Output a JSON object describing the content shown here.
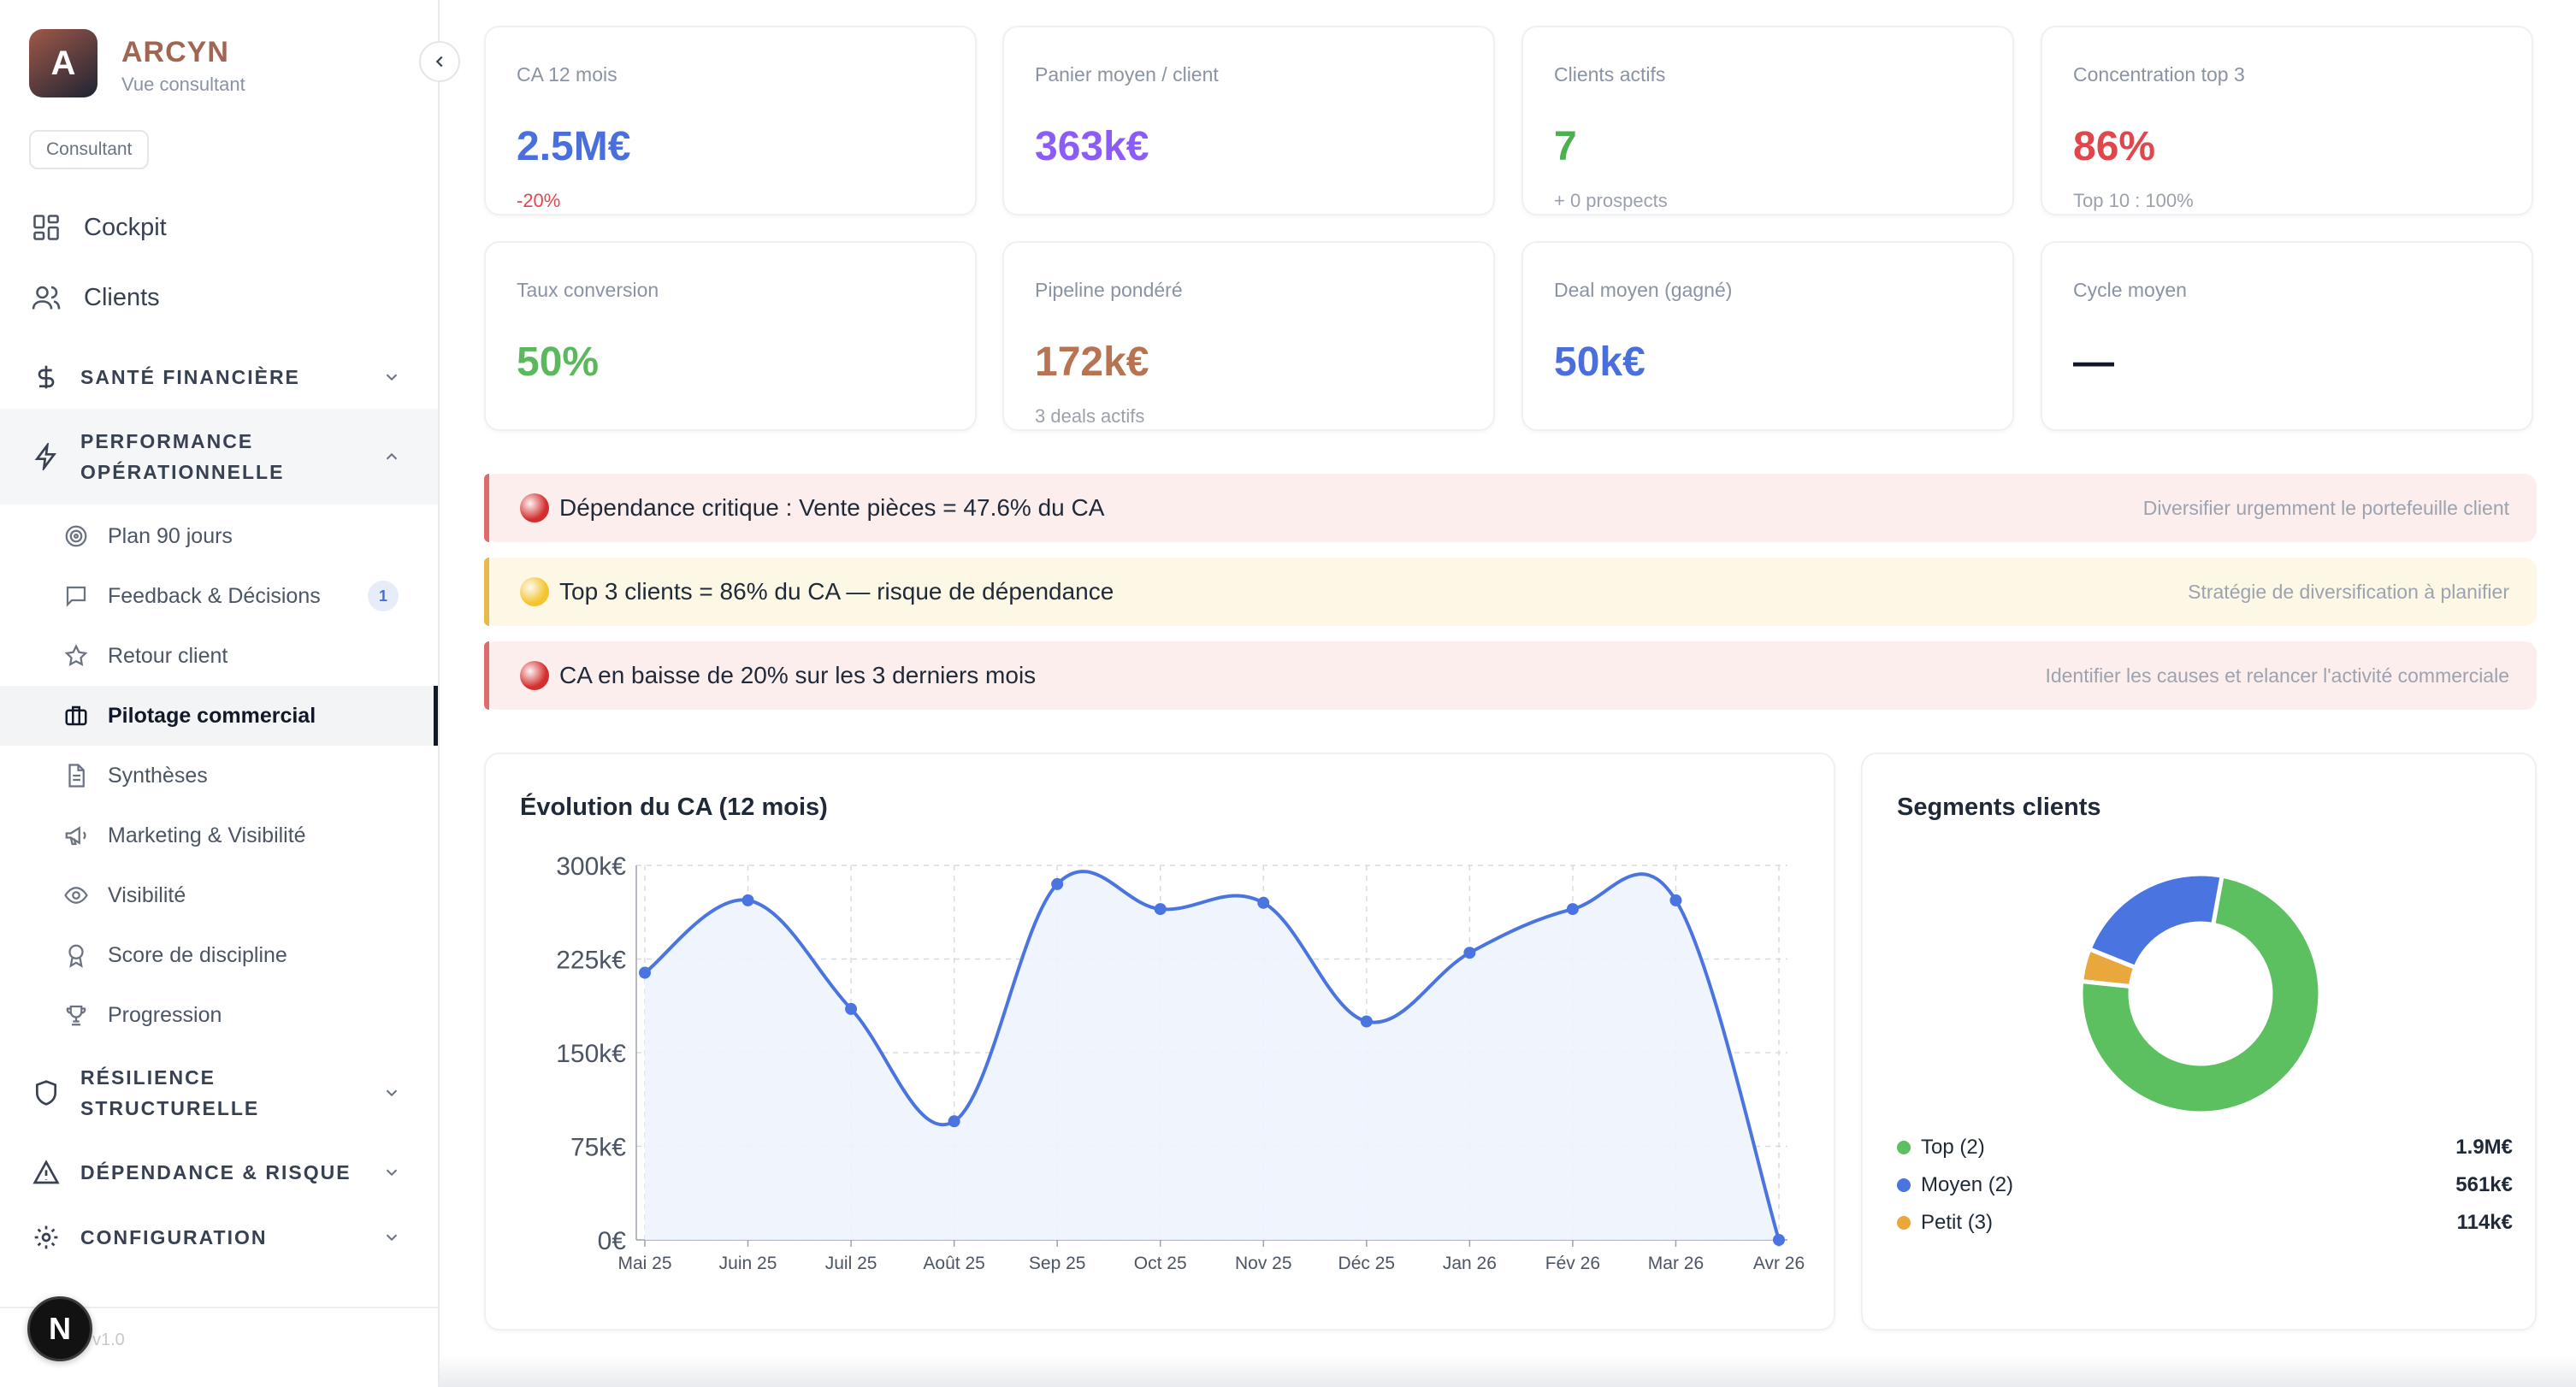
{
  "brand": {
    "initial": "A",
    "name": "ARCYN",
    "subtitle": "Vue consultant",
    "role": "Consultant"
  },
  "nav": {
    "top": [
      {
        "label": "Cockpit",
        "icon": "grid-icon"
      },
      {
        "label": "Clients",
        "icon": "users-icon"
      }
    ],
    "sections": {
      "finance": {
        "label": "SANTÉ FINANCIÈRE",
        "icon": "dollar-icon"
      },
      "perf": {
        "label_line1": "PERFORMANCE",
        "label_line2": "OPÉRATIONNELLE",
        "icon": "zap-icon"
      },
      "resilience": {
        "label_line1": "RÉSILIENCE",
        "label_line2": "STRUCTURELLE",
        "icon": "shield-icon"
      },
      "dependance": {
        "label": "DÉPENDANCE & RISQUE",
        "icon": "alert-triangle-icon"
      },
      "config": {
        "label": "CONFIGURATION",
        "icon": "gear-icon"
      }
    },
    "perf_items": [
      {
        "label": "Plan 90 jours",
        "icon": "target-icon"
      },
      {
        "label": "Feedback & Décisions",
        "icon": "message-icon",
        "count": "1"
      },
      {
        "label": "Retour client",
        "icon": "star-icon"
      },
      {
        "label": "Pilotage commercial",
        "icon": "briefcase-icon",
        "active": true
      },
      {
        "label": "Synthèses",
        "icon": "file-text-icon"
      },
      {
        "label": "Marketing & Visibilité",
        "icon": "megaphone-icon"
      },
      {
        "label": "Visibilité",
        "icon": "eye-icon"
      },
      {
        "label": "Score de discipline",
        "icon": "award-icon"
      },
      {
        "label": "Progression",
        "icon": "trophy-icon"
      }
    ],
    "footer": {
      "badge": "N",
      "version": "v1.0"
    }
  },
  "kpis": [
    {
      "label": "CA 12 mois",
      "value": "2.5M€",
      "sub": "-20%",
      "color": "#4a6fdc",
      "sub_color": "#e0474c"
    },
    {
      "label": "Panier moyen / client",
      "value": "363k€",
      "sub": "",
      "color": "#8b5cf6",
      "sub_color": "#9aa1ad"
    },
    {
      "label": "Clients actifs",
      "value": "7",
      "sub": "+ 0 prospects",
      "color": "#4caf50",
      "sub_color": "#9aa1ad"
    },
    {
      "label": "Concentration top 3",
      "value": "86%",
      "sub": "Top 10 : 100%",
      "color": "#e0474c",
      "sub_color": "#9aa1ad"
    },
    {
      "label": "Taux conversion",
      "value": "50%",
      "sub": "",
      "color": "#5cb85c",
      "sub_color": "#9aa1ad"
    },
    {
      "label": "Pipeline pondéré",
      "value": "172k€",
      "sub": "3 deals actifs",
      "color": "#b87452",
      "sub_color": "#9aa1ad"
    },
    {
      "label": "Deal moyen (gagné)",
      "value": "50k€",
      "sub": "",
      "color": "#4a6fdc",
      "sub_color": "#9aa1ad"
    },
    {
      "label": "Cycle moyen",
      "value": "—",
      "sub": "",
      "color": "#111827",
      "sub_color": "#9aa1ad"
    }
  ],
  "alerts": [
    {
      "level": "critical",
      "message": "Dépendance critique : Vente pièces = 47.6% du CA",
      "hint": "Diversifier urgemment le portefeuille client",
      "bg": "#fdeeee",
      "bar": "#e06a6a",
      "dot": "#d32f2f"
    },
    {
      "level": "warning",
      "message": "Top 3 clients = 86% du CA — risque de dépendance",
      "hint": "Stratégie de diversification à planifier",
      "bg": "#fdf8e6",
      "bar": "#e8b84a",
      "dot": "#f4c430"
    },
    {
      "level": "critical",
      "message": "CA en baisse de 20% sur les 3 derniers mois",
      "hint": "Identifier les causes et relancer l'activité commerciale",
      "bg": "#fdeeee",
      "bar": "#e06a6a",
      "dot": "#d32f2f"
    }
  ],
  "revenue_card": {
    "title": "Évolution du CA (12 mois)"
  },
  "segments_card": {
    "title": "Segments clients"
  },
  "chart_data": [
    {
      "type": "area",
      "title": "Évolution du CA (12 mois)",
      "x": [
        "Mai 25",
        "Juin 25",
        "Juil 25",
        "Août 25",
        "Sep 25",
        "Oct 25",
        "Nov 25",
        "Déc 25",
        "Jan 26",
        "Fév 26",
        "Mar 26",
        "Avr 26"
      ],
      "y": [
        214000,
        272000,
        185000,
        95000,
        285000,
        265000,
        270000,
        175000,
        230000,
        265000,
        272000,
        0
      ],
      "ylim": [
        0,
        300000
      ],
      "yticks": [
        "0€",
        "75k€",
        "150k€",
        "225k€",
        "300k€"
      ],
      "grid": true,
      "color": "#4a74e0",
      "fill": "#eef3fd"
    },
    {
      "type": "pie",
      "title": "Segments clients",
      "donut": true,
      "slices": [
        {
          "label": "Top (2)",
          "value": "1.9M€",
          "amount": 1900000,
          "color": "#5cbf60"
        },
        {
          "label": "Moyen (2)",
          "value": "561k€",
          "amount": 561000,
          "color": "#4a74e0"
        },
        {
          "label": "Petit (3)",
          "value": "114k€",
          "amount": 114000,
          "color": "#eaa73c"
        }
      ],
      "legend": "bottom"
    }
  ]
}
